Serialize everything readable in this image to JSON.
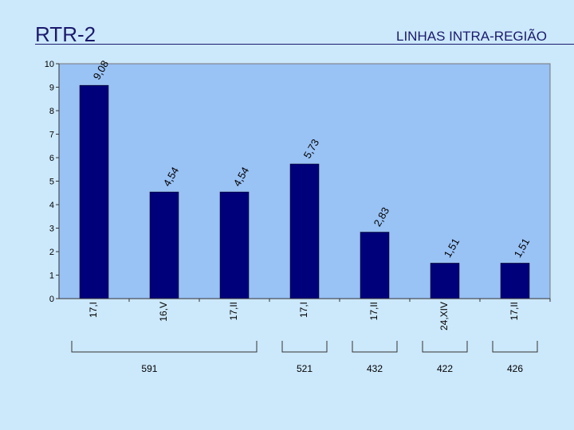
{
  "header": {
    "title": "RTR-2",
    "subtitle": "LINHAS INTRA-REGIÃO"
  },
  "chart_data": {
    "type": "bar",
    "categories": [
      "17,I",
      "16,V",
      "17,II",
      "17,I",
      "17,II",
      "24,XIV",
      "17,II"
    ],
    "values": [
      9.08,
      4.54,
      4.54,
      5.73,
      2.83,
      1.51,
      1.51
    ],
    "value_labels": [
      "9,08",
      "4,54",
      "4,54",
      "5,73",
      "2,83",
      "1,51",
      "1,51"
    ],
    "yticks": [
      "0",
      "1",
      "2",
      "3",
      "4",
      "5",
      "6",
      "7",
      "8",
      "9",
      "10"
    ],
    "ylim": [
      0,
      10
    ],
    "grid": false,
    "bar_color": "#00007a",
    "plot_bg": "#99c2f5",
    "groups": [
      {
        "label": "591",
        "from": 0,
        "to": 2
      },
      {
        "label": "521",
        "from": 3,
        "to": 3
      },
      {
        "label": "432",
        "from": 4,
        "to": 4
      },
      {
        "label": "422",
        "from": 5,
        "to": 5
      },
      {
        "label": "426",
        "from": 6,
        "to": 6
      }
    ]
  }
}
